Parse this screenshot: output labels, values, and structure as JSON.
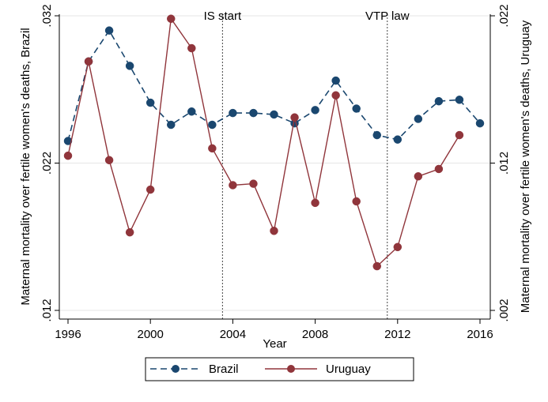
{
  "chart_data": {
    "type": "line",
    "xlabel": "Year",
    "ylabel_left": "Maternal mortality over fertile women's deaths, Brazil",
    "ylabel_right": "Maternal mortality over fertile women's deaths, Uruguay",
    "x": [
      1996,
      1997,
      1998,
      1999,
      2000,
      2001,
      2002,
      2003,
      2004,
      2005,
      2006,
      2007,
      2008,
      2009,
      2010,
      2011,
      2012,
      2013,
      2014,
      2015,
      2016
    ],
    "xlim": [
      1996,
      2016
    ],
    "x_ticks": [
      "1996",
      "2000",
      "2004",
      "2008",
      "2012",
      "2016"
    ],
    "x_tick_values": [
      1996,
      2000,
      2004,
      2008,
      2012,
      2016
    ],
    "ylim_left": [
      0.012,
      0.032
    ],
    "y_ticks_left": [
      ".012",
      ".022",
      ".032"
    ],
    "y_tick_values_left": [
      0.012,
      0.022,
      0.032
    ],
    "ylim_right": [
      0.002,
      0.022
    ],
    "y_ticks_right": [
      ".002",
      ".012",
      ".022"
    ],
    "y_tick_values_right": [
      0.002,
      0.012,
      0.022
    ],
    "grid": "horizontal",
    "annotations": [
      {
        "label": "IS start",
        "x": 2003.5
      },
      {
        "label": "VTP law",
        "x": 2011.5
      }
    ],
    "legend_position": "bottom",
    "series": [
      {
        "name": "Brazil",
        "axis": "left",
        "color": "#1a476f",
        "style": "dashed",
        "marker": "circle",
        "x": [
          1996,
          1997,
          1998,
          1999,
          2000,
          2001,
          2002,
          2003,
          2004,
          2005,
          2006,
          2007,
          2008,
          2009,
          2010,
          2011,
          2012,
          2013,
          2014,
          2015,
          2016
        ],
        "values": [
          0.0235,
          0.0289,
          0.031,
          0.0286,
          0.0261,
          0.0246,
          0.0255,
          0.0246,
          0.0254,
          0.0254,
          0.0253,
          0.0247,
          0.0256,
          0.0276,
          0.0257,
          0.0239,
          0.0236,
          0.025,
          0.0262,
          0.0263,
          0.0247
        ]
      },
      {
        "name": "Uruguay",
        "axis": "right",
        "color": "#90353b",
        "style": "solid",
        "marker": "circle",
        "x": [
          1996,
          1997,
          1998,
          1999,
          2000,
          2001,
          2002,
          2003,
          2004,
          2005,
          2006,
          2007,
          2008,
          2009,
          2010,
          2011,
          2012,
          2013,
          2014,
          2015
        ],
        "values": [
          0.0125,
          0.0189,
          0.0122,
          0.0073,
          0.0102,
          0.0218,
          0.0198,
          0.013,
          0.0105,
          0.0106,
          0.0074,
          0.0151,
          0.0093,
          0.0166,
          0.0094,
          0.005,
          0.0063,
          0.0111,
          0.0116,
          0.0139
        ]
      }
    ]
  }
}
